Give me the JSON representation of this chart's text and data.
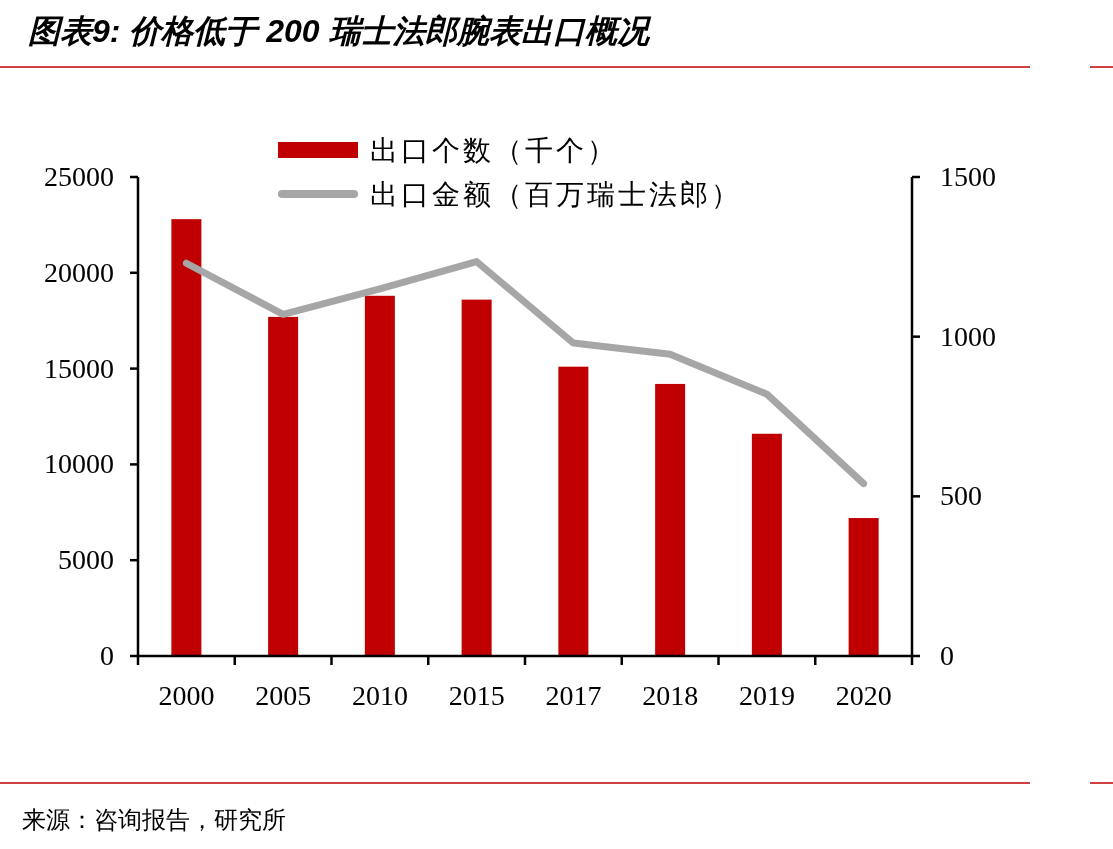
{
  "chart_data": {
    "type": "bar",
    "title": "图表9: 价格低于 200 瑞士法郎腕表出口概况",
    "categories": [
      "2000",
      "2005",
      "2010",
      "2015",
      "2017",
      "2018",
      "2019",
      "2020"
    ],
    "series": [
      {
        "name": "出口个数（千个）",
        "color": "#c00000",
        "values": [
          22800,
          17700,
          18800,
          18600,
          15100,
          14200,
          11600,
          7200
        ]
      },
      {
        "name": "出口金额（百万瑞士法郎）",
        "type": "line",
        "axis": "y2",
        "color": "#a6a6a6",
        "values": [
          1230,
          1070,
          1150,
          1235,
          980,
          945,
          820,
          540
        ]
      }
    ],
    "ylim": [
      0,
      25000
    ],
    "yticks": [
      0,
      5000,
      10000,
      15000,
      20000,
      25000
    ],
    "y2lim": [
      0,
      1500
    ],
    "y2ticks": [
      0,
      500,
      1000,
      1500
    ],
    "legend": "top",
    "annotations": [
      "来源：咨询报告，研究所"
    ]
  }
}
